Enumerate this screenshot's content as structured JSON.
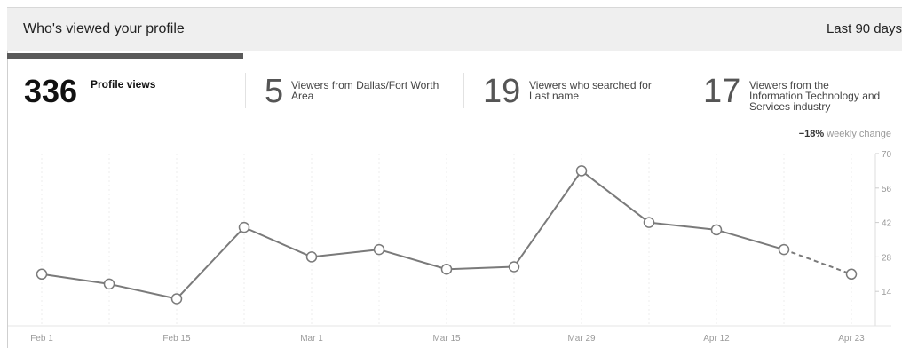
{
  "header": {
    "title": "Who's viewed your profile",
    "range": "Last 90 days"
  },
  "tabs": [
    {
      "count": "336",
      "label": "Profile views",
      "active": true
    },
    {
      "count": "5",
      "label": "Viewers from Dallas/Fort Worth Area",
      "active": false
    },
    {
      "count": "19",
      "label": "Viewers who searched for Last name",
      "active": false
    },
    {
      "count": "17",
      "label": "Viewers from the Information Technology and Services industry",
      "active": false
    }
  ],
  "weekly_change": {
    "value": "−18%",
    "label": "weekly change"
  },
  "colors": {
    "line": "#7a7a7a",
    "marker_fill": "#ffffff",
    "grid": "#eeeeee",
    "tab_underline": "#5a5a5a"
  },
  "chart_data": {
    "type": "line",
    "x_labels": [
      "Feb 1",
      "Feb 15",
      "Mar 1",
      "Mar 15",
      "Mar 29",
      "Apr 12",
      "Apr 23"
    ],
    "y_ticks": [
      "14",
      "28",
      "42",
      "56",
      "70"
    ],
    "ylim": [
      0,
      70
    ],
    "grid": true,
    "series": [
      {
        "values": [
          21,
          17,
          11,
          40,
          28,
          31,
          23,
          24,
          63,
          42,
          39,
          31,
          21
        ],
        "last_segment_dashed": true
      }
    ]
  }
}
